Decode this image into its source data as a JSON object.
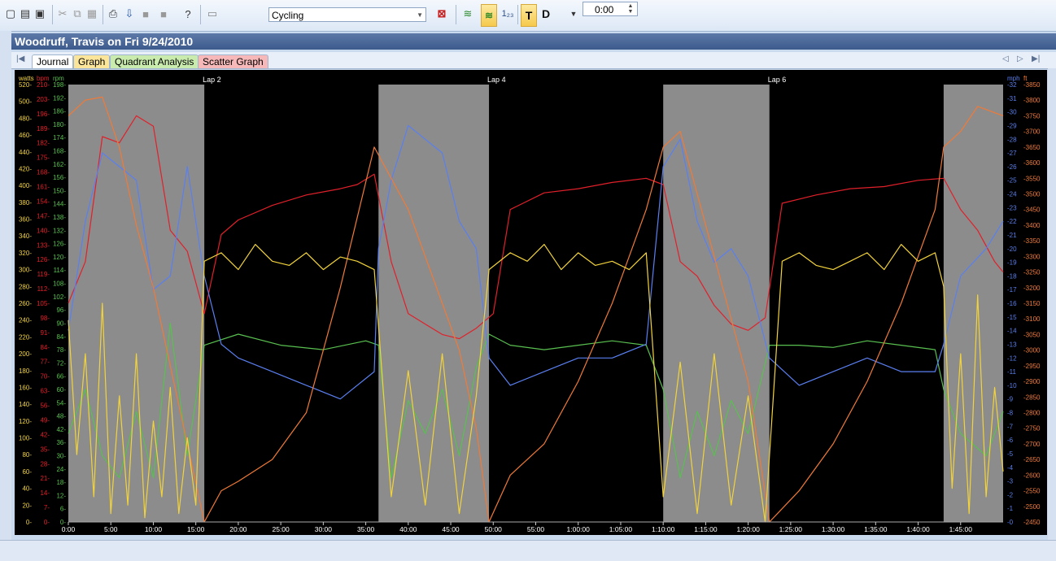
{
  "toolbar": {
    "sport_select": "Cycling",
    "time_value": "0:00",
    "t_label": "T",
    "d_label": "D",
    "counter_label": "1₂₃"
  },
  "workout_title": "Woodruff, Travis on Fri 9/24/2010",
  "tabs": [
    {
      "label": "Journal"
    },
    {
      "label": "Graph"
    },
    {
      "label": "Quadrant Analysis"
    },
    {
      "label": "Scatter Graph"
    }
  ],
  "colors": {
    "watts": "#f2d33c",
    "bpm": "#e0202a",
    "rpm": "#59c050",
    "mph": "#5a7ff0",
    "ft": "#f07a38",
    "power_smooth": "#f7cc8a",
    "lap_shade": "#8c8c8c"
  },
  "chart_data": {
    "type": "line",
    "x_ticks": [
      "0:00",
      "5:00",
      "10:00",
      "15:00",
      "20:00",
      "25:00",
      "30:00",
      "35:00",
      "40:00",
      "45:00",
      "50:00",
      "55:00",
      "1:00:00",
      "1:05:00",
      "1:10:00",
      "1:15:00",
      "1:20:00",
      "1:25:00",
      "1:30:00",
      "1:35:00",
      "1:40:00",
      "1:45:00"
    ],
    "xlim_min": [
      0,
      110
    ],
    "lap_labels": [
      {
        "label": "Lap 2",
        "start_min": 16
      },
      {
        "label": "Lap 4",
        "start_min": 49.5
      },
      {
        "label": "Lap 6",
        "start_min": 82.5
      }
    ],
    "shaded_laps_min": [
      [
        0,
        16
      ],
      [
        36.5,
        49.5
      ],
      [
        70,
        82.5
      ],
      [
        103,
        110
      ]
    ],
    "axes": {
      "watts": {
        "unit": "watts",
        "ticks": [
          0,
          20,
          40,
          60,
          80,
          100,
          120,
          140,
          160,
          180,
          200,
          220,
          240,
          260,
          280,
          300,
          320,
          340,
          360,
          380,
          400,
          420,
          440,
          460,
          480,
          500,
          520
        ],
        "range": [
          0,
          520
        ]
      },
      "bpm": {
        "unit": "bpm",
        "ticks": [
          0,
          7,
          14,
          21,
          28,
          35,
          42,
          49,
          56,
          63,
          70,
          77,
          84,
          91,
          98,
          105,
          112,
          119,
          126,
          133,
          140,
          147,
          154,
          161,
          168,
          175,
          182,
          189,
          196,
          203,
          210
        ],
        "range": [
          0,
          210
        ]
      },
      "rpm": {
        "unit": "rpm",
        "ticks": [
          0,
          6,
          12,
          18,
          24,
          30,
          36,
          42,
          48,
          54,
          60,
          66,
          72,
          78,
          84,
          90,
          96,
          102,
          108,
          114,
          120,
          126,
          132,
          138,
          144,
          150,
          156,
          162,
          168,
          174,
          180,
          186,
          192,
          198
        ],
        "range": [
          0,
          198
        ]
      },
      "mph": {
        "unit": "mph",
        "ticks": [
          0,
          1,
          2,
          3,
          4,
          5,
          6,
          7,
          8,
          9,
          10,
          11,
          12,
          13,
          14,
          15,
          16,
          17,
          18,
          19,
          20,
          21,
          22,
          23,
          24,
          25,
          26,
          27,
          28,
          29,
          30,
          31,
          32
        ],
        "range": [
          0,
          32
        ]
      },
      "ft": {
        "unit": "ft",
        "ticks": [
          2450,
          2500,
          2550,
          2600,
          2650,
          2700,
          2750,
          2800,
          2850,
          2900,
          2950,
          3000,
          3050,
          3100,
          3150,
          3200,
          3250,
          3300,
          3350,
          3400,
          3450,
          3500,
          3550,
          3600,
          3650,
          3700,
          3750,
          3800,
          3850
        ],
        "range": [
          2450,
          3850
        ]
      }
    },
    "series": [
      {
        "name": "bpm",
        "x": [
          0,
          2,
          4,
          6,
          8,
          10,
          12,
          14,
          16,
          18,
          20,
          24,
          28,
          32,
          34,
          36,
          38,
          40,
          42,
          44,
          46,
          48,
          50,
          52,
          56,
          60,
          64,
          68,
          70,
          72,
          74,
          76,
          78,
          80,
          82,
          84,
          88,
          92,
          96,
          100,
          103,
          105,
          107,
          109,
          110
        ],
        "y": [
          105,
          125,
          185,
          182,
          195,
          190,
          140,
          130,
          100,
          138,
          145,
          152,
          157,
          160,
          162,
          167,
          125,
          100,
          95,
          90,
          88,
          93,
          100,
          150,
          158,
          160,
          163,
          165,
          162,
          125,
          118,
          104,
          95,
          92,
          98,
          153,
          157,
          160,
          161,
          164,
          165,
          150,
          140,
          125,
          120
        ]
      },
      {
        "name": "rpm",
        "x": [
          0,
          2,
          4,
          6,
          8,
          10,
          12,
          14,
          16,
          20,
          25,
          30,
          35,
          36.5,
          38,
          40,
          42,
          44,
          46,
          48,
          49.5,
          52,
          56,
          60,
          64,
          68,
          70,
          72,
          74,
          76,
          78,
          80,
          82.5,
          86,
          90,
          94,
          98,
          102,
          103,
          105,
          108,
          110
        ],
        "y": [
          40,
          60,
          30,
          20,
          50,
          20,
          90,
          30,
          80,
          85,
          80,
          78,
          82,
          80,
          20,
          55,
          40,
          60,
          30,
          70,
          85,
          80,
          78,
          80,
          82,
          80,
          60,
          20,
          50,
          30,
          55,
          40,
          80,
          80,
          79,
          82,
          80,
          78,
          60,
          40,
          30,
          50
        ]
      },
      {
        "name": "mph",
        "x": [
          0,
          2,
          4,
          6,
          8,
          10,
          12,
          14,
          16,
          18,
          20,
          24,
          28,
          32,
          36,
          36.5,
          38,
          40,
          42,
          44,
          46,
          48,
          49.5,
          52,
          56,
          60,
          64,
          68,
          70,
          72,
          74,
          76,
          78,
          80,
          82.5,
          86,
          90,
          94,
          98,
          102,
          103,
          105,
          108,
          110
        ],
        "y": [
          14,
          22,
          27,
          26,
          25,
          17,
          18,
          26,
          18,
          13,
          12,
          11,
          10,
          9,
          11,
          20,
          25,
          29,
          28,
          27,
          22,
          20,
          12,
          10,
          11,
          12,
          12,
          13,
          26,
          28,
          22,
          19,
          20,
          18,
          12,
          10,
          11,
          12,
          11,
          11,
          13,
          18,
          20,
          22
        ]
      },
      {
        "name": "ft",
        "x": [
          0,
          2,
          4,
          6,
          8,
          10,
          12,
          14,
          16,
          18,
          20,
          24,
          28,
          32,
          36,
          38,
          40,
          42,
          44,
          46,
          48,
          49.5,
          52,
          56,
          60,
          64,
          68,
          70,
          72,
          76,
          80,
          82.5,
          86,
          90,
          94,
          98,
          102,
          103,
          105,
          107,
          108,
          110
        ],
        "y": [
          3750,
          3800,
          3810,
          3650,
          3400,
          3200,
          2950,
          2700,
          2450,
          2550,
          2580,
          2650,
          2800,
          3200,
          3650,
          3550,
          3450,
          3300,
          3150,
          3000,
          2750,
          2450,
          2600,
          2700,
          2900,
          3150,
          3450,
          3650,
          3700,
          3300,
          2900,
          2450,
          2550,
          2700,
          2900,
          3150,
          3450,
          3650,
          3700,
          3780,
          3770,
          3750
        ]
      },
      {
        "name": "watts",
        "x": [
          0,
          1,
          2,
          3,
          4,
          5,
          6,
          7,
          8,
          9,
          10,
          11,
          12,
          13,
          14,
          15,
          16,
          18,
          20,
          22,
          24,
          26,
          28,
          30,
          32,
          34,
          36,
          38,
          40,
          42,
          44,
          46,
          48,
          49.5,
          52,
          54,
          56,
          58,
          60,
          62,
          64,
          66,
          68,
          70,
          72,
          74,
          76,
          78,
          80,
          82,
          84,
          86,
          88,
          90,
          92,
          94,
          96,
          98,
          100,
          102,
          103,
          104,
          105,
          106,
          107,
          108,
          109,
          110
        ],
        "y": [
          240,
          80,
          200,
          30,
          260,
          10,
          150,
          20,
          200,
          5,
          120,
          30,
          160,
          10,
          100,
          20,
          310,
          320,
          300,
          330,
          310,
          305,
          320,
          300,
          315,
          310,
          300,
          30,
          180,
          20,
          200,
          10,
          150,
          300,
          320,
          310,
          330,
          300,
          320,
          305,
          310,
          300,
          320,
          30,
          190,
          10,
          200,
          20,
          150,
          0,
          310,
          320,
          305,
          300,
          310,
          320,
          300,
          330,
          310,
          320,
          280,
          40,
          200,
          10,
          270,
          30,
          160,
          60
        ]
      }
    ]
  }
}
